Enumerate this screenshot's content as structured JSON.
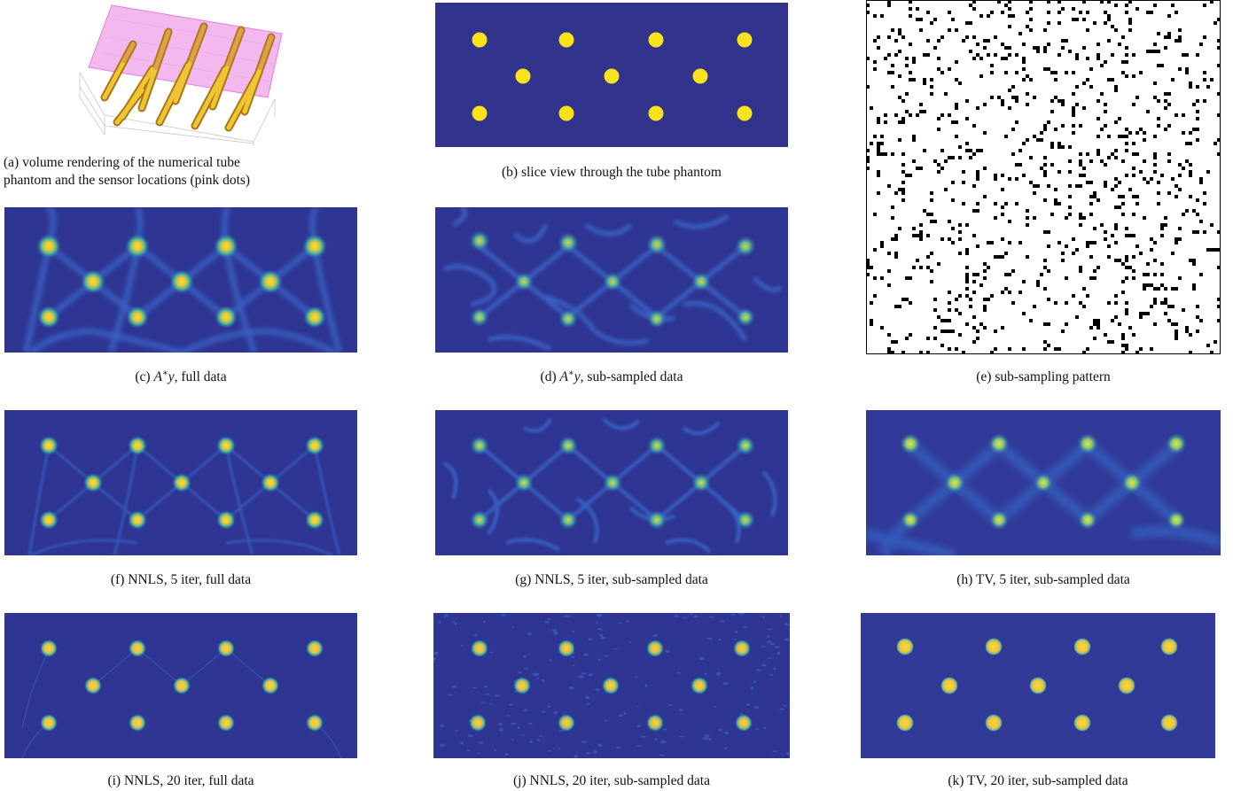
{
  "colors": {
    "background_blue": "#32338c",
    "tube_yellow": "#f7e21b",
    "blob_core": "#f2d63a",
    "blob_mid": "#3fb69a",
    "blob_edge": "#2b83ba",
    "sensor_pink": "#e76ee0",
    "tube_rod": "#d8a52a"
  },
  "figure": {
    "panels": [
      {
        "id": "a",
        "label": "(a)",
        "text_line1": "volume rendering of the numerical tube",
        "text_line2": "phantom and the sensor locations (pink dots)",
        "kind": "volume-rendering"
      },
      {
        "id": "b",
        "label": "(b)",
        "text": "slice view through the tube phantom",
        "kind": "phantom"
      },
      {
        "id": "c",
        "label": "(c)",
        "text_math": "A",
        "text_sup": "∗",
        "text_var": "y",
        "text_rest": ", full data",
        "kind": "backprojection-full"
      },
      {
        "id": "d",
        "label": "(d)",
        "text_math": "A",
        "text_sup": "∗",
        "text_var": "y",
        "text_rest": ", sub-sampled data",
        "kind": "backprojection-sub"
      },
      {
        "id": "e",
        "label": "(e)",
        "text": "sub-sampling pattern",
        "kind": "pattern"
      },
      {
        "id": "f",
        "label": "(f)",
        "text": "NNLS, 5 iter, full data",
        "kind": "nnls5-full"
      },
      {
        "id": "g",
        "label": "(g)",
        "text": "NNLS, 5 iter, sub-sampled data",
        "kind": "nnls5-sub"
      },
      {
        "id": "h",
        "label": "(h)",
        "text": "TV, 5 iter, sub-sampled data",
        "kind": "tv5-sub"
      },
      {
        "id": "i",
        "label": "(i)",
        "text": "NNLS, 20 iter, full data",
        "kind": "nnls20-full"
      },
      {
        "id": "j",
        "label": "(j)",
        "text": "NNLS, 20 iter, sub-sampled data",
        "kind": "nnls20-sub"
      },
      {
        "id": "k",
        "label": "(k)",
        "text": "TV, 20 iter, sub-sampled data",
        "kind": "tv20-sub"
      }
    ]
  }
}
